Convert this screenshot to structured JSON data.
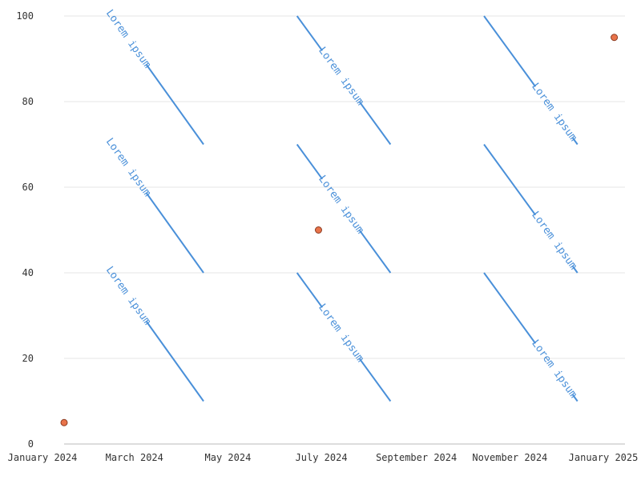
{
  "chart_data": {
    "type": "line",
    "title": "",
    "xlabel": "",
    "ylabel": "",
    "x_axis": {
      "type": "date",
      "range": [
        "2024-01-01",
        "2025-01-01"
      ],
      "tick_labels": [
        {
          "date": "2024-01-01",
          "label": "January 2024"
        },
        {
          "date": "2024-03-01",
          "label": "March 2024"
        },
        {
          "date": "2024-05-01",
          "label": "May 2024"
        },
        {
          "date": "2024-07-01",
          "label": "July 2024"
        },
        {
          "date": "2024-09-01",
          "label": "September 2024"
        },
        {
          "date": "2024-11-01",
          "label": "November 2024"
        },
        {
          "date": "2025-01-01",
          "label": "January 2025"
        }
      ]
    },
    "ylim": [
      0,
      100
    ],
    "y_ticks": [
      "0",
      "20",
      "40",
      "60",
      "80",
      "100"
    ],
    "grid": "horizontal",
    "segments": [
      {
        "label": "Lorem ipsum",
        "x": [
          "2024-02-01",
          "2024-04-01"
        ],
        "y": [
          100,
          70
        ]
      },
      {
        "label": "Lorem ipsum",
        "x": [
          "2024-06-01",
          "2024-08-01"
        ],
        "y": [
          100,
          70
        ]
      },
      {
        "label": "Lorem ipsum",
        "x": [
          "2024-10-01",
          "2024-12-01"
        ],
        "y": [
          100,
          70
        ]
      },
      {
        "label": "Lorem ipsum",
        "x": [
          "2024-02-01",
          "2024-04-01"
        ],
        "y": [
          70,
          40
        ]
      },
      {
        "label": "Lorem ipsum",
        "x": [
          "2024-06-01",
          "2024-08-01"
        ],
        "y": [
          70,
          40
        ]
      },
      {
        "label": "Lorem ipsum",
        "x": [
          "2024-10-01",
          "2024-12-01"
        ],
        "y": [
          70,
          40
        ]
      },
      {
        "label": "Lorem ipsum",
        "x": [
          "2024-02-01",
          "2024-04-01"
        ],
        "y": [
          40,
          10
        ]
      },
      {
        "label": "Lorem ipsum",
        "x": [
          "2024-06-01",
          "2024-08-01"
        ],
        "y": [
          40,
          10
        ]
      },
      {
        "label": "Lorem ipsum",
        "x": [
          "2024-10-01",
          "2024-12-01"
        ],
        "y": [
          40,
          10
        ]
      }
    ],
    "points": [
      {
        "x": "2024-01-01",
        "y": 5
      },
      {
        "x": "2024-06-15",
        "y": 50
      },
      {
        "x": "2024-12-25",
        "y": 95
      }
    ],
    "colors": {
      "segment": "#4a90d9",
      "point": "#e8734a",
      "point_outline": "#8a3a20"
    }
  }
}
